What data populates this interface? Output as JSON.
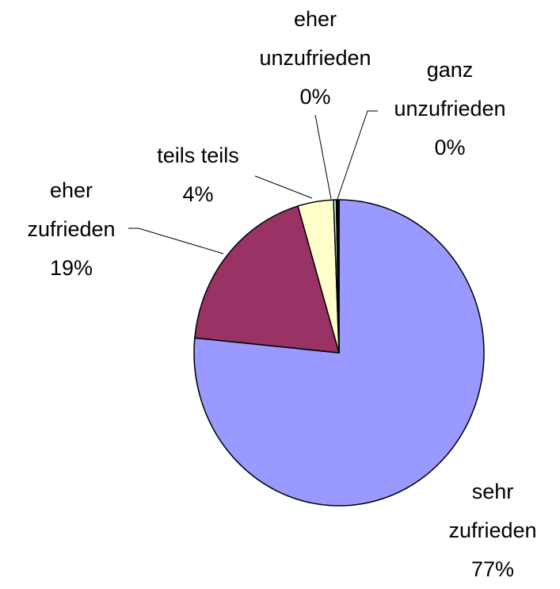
{
  "chart_data": {
    "type": "pie",
    "categories": [
      "sehr zufrieden",
      "eher zufrieden",
      "teils teils",
      "eher unzufrieden",
      "ganz unzufrieden"
    ],
    "values": [
      77,
      19,
      4,
      0.3,
      0.3
    ],
    "value_labels": [
      "77%",
      "19%",
      "4%",
      "0%",
      "0%"
    ],
    "colors": [
      "#9999ff",
      "#993366",
      "#ffffcc",
      "#ccffff",
      "#000000"
    ]
  }
}
